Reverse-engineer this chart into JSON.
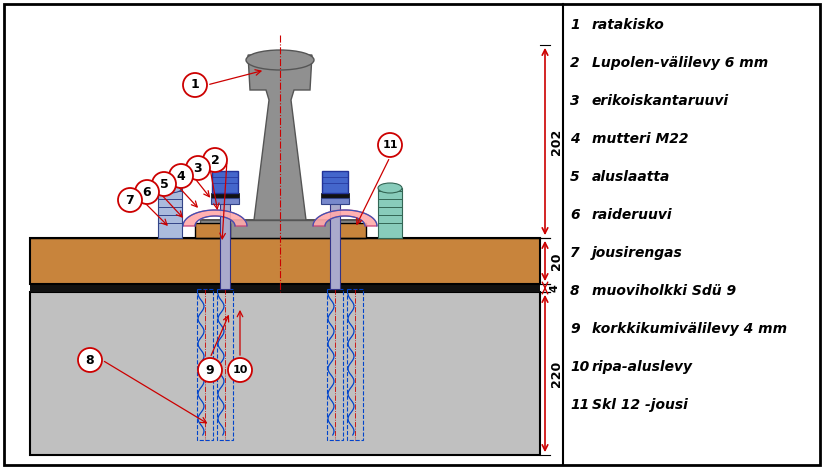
{
  "bg_color": "#ffffff",
  "border_color": "#000000",
  "legend_items": [
    {
      "num": "1",
      "text": "ratakisko"
    },
    {
      "num": "2",
      "text": "Lupolen-välilevy 6 mm"
    },
    {
      "num": "3",
      "text": "erikoiskantaruuvi"
    },
    {
      "num": "4",
      "text": "mutteri M22"
    },
    {
      "num": "5",
      "text": "aluslaatta"
    },
    {
      "num": "6",
      "text": "raideruuvi"
    },
    {
      "num": "7",
      "text": "jousirengas"
    },
    {
      "num": "8",
      "text": "muoviholkki Sdü 9"
    },
    {
      "num": "9",
      "text": "korkkikumivälilevy 4 mm"
    },
    {
      "num": "10",
      "text": "ripa-aluslevy"
    },
    {
      "num": "11",
      "text": "Skl 12 -jousi"
    }
  ],
  "rail_color": "#909090",
  "sleeper_color": "#c8843c",
  "concrete_color": "#c0c0c0",
  "black_layer_color": "#111111",
  "red_layer_color": "#cc1100",
  "pink_spring": "#ffaaaa",
  "blue_bolt": "#4466cc",
  "light_blue": "#aabbdd",
  "teal_bolt": "#88ccbb",
  "dim_color": "#cc0000",
  "label_red": "#cc0000"
}
